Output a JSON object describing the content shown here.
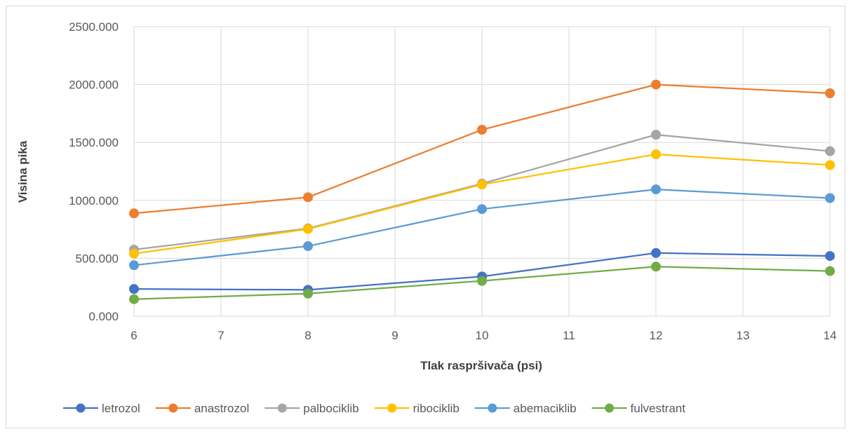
{
  "chart_data": {
    "type": "line",
    "title": "",
    "xlabel": "Tlak raspršivača (psi)",
    "ylabel": "Visina pika",
    "xlim": [
      6,
      14
    ],
    "ylim": [
      0,
      2500
    ],
    "x_ticks": [
      "6",
      "7",
      "8",
      "9",
      "10",
      "11",
      "12",
      "13",
      "14"
    ],
    "y_ticks": [
      "0.000",
      "500.000",
      "1000.000",
      "1500.000",
      "2000.000",
      "2500.000"
    ],
    "grid": true,
    "legend_position": "bottom",
    "x": [
      6,
      8,
      10,
      12,
      14
    ],
    "series": [
      {
        "name": "letrozol",
        "color": "#4472C4",
        "values": [
          235,
          228,
          343,
          546,
          520
        ]
      },
      {
        "name": "anastrozol",
        "color": "#ED7D31",
        "values": [
          888,
          1027,
          1610,
          2000,
          1925
        ]
      },
      {
        "name": "palbociklib",
        "color": "#A5A5A5",
        "values": [
          575,
          758,
          1145,
          1567,
          1425
        ]
      },
      {
        "name": "ribociklib",
        "color": "#FFC000",
        "values": [
          540,
          753,
          1137,
          1398,
          1305
        ]
      },
      {
        "name": "abemaciklib",
        "color": "#5B9BD5",
        "values": [
          440,
          605,
          925,
          1095,
          1020
        ]
      },
      {
        "name": "fulvestrant",
        "color": "#70AD47",
        "values": [
          147,
          195,
          305,
          428,
          390
        ]
      }
    ]
  }
}
